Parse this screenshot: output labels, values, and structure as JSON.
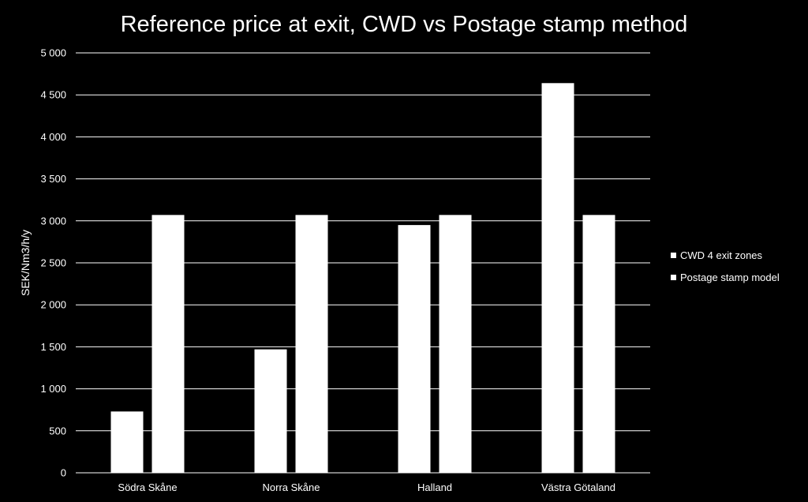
{
  "chart_data": {
    "type": "bar",
    "title": "Reference price at exit, CWD vs Postage stamp method",
    "xlabel": "",
    "ylabel": "SEK/Nm3/h/y",
    "categories": [
      "Södra Skåne",
      "Norra Skåne",
      "Halland",
      "Västra Götaland"
    ],
    "series": [
      {
        "name": "CWD 4 exit zones",
        "values": [
          730,
          1470,
          2950,
          4640
        ],
        "color": "#ffffff"
      },
      {
        "name": "Postage stamp model",
        "values": [
          3070,
          3070,
          3070,
          3070
        ],
        "color": "#ffffff"
      }
    ],
    "ylim": [
      0,
      5000
    ],
    "yticks": [
      0,
      500,
      1000,
      1500,
      2000,
      2500,
      3000,
      3500,
      4000,
      4500,
      5000
    ],
    "ytick_labels": [
      "0",
      "500",
      "1 000",
      "1 500",
      "2 000",
      "2 500",
      "3 000",
      "3 500",
      "4 000",
      "4 500",
      "5 000"
    ],
    "grid": true,
    "legend_position": "right",
    "background": "#000000",
    "foreground": "#ffffff"
  }
}
